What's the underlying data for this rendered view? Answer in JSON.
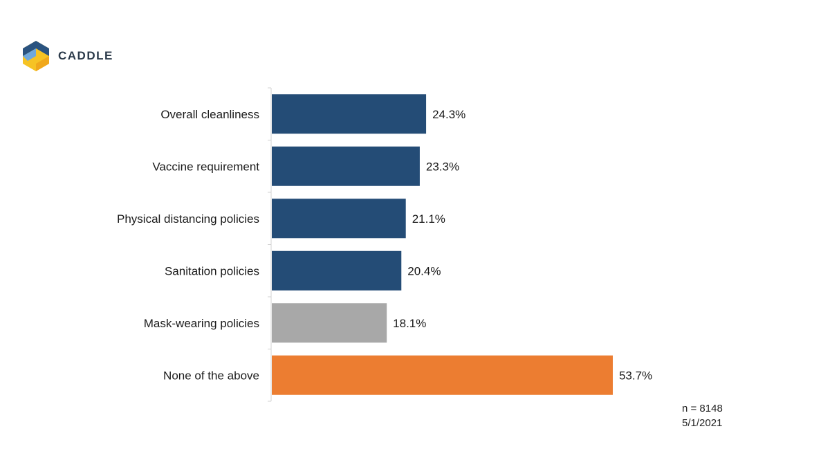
{
  "brand": {
    "name": "CADDLE",
    "logo_icon": "caddle-hexagon-logo-icon",
    "colors": {
      "blue": "#2a5380",
      "yellow": "#f6c324",
      "light_blue": "#6fa8dc"
    }
  },
  "chart_data": {
    "type": "bar",
    "orientation": "horizontal",
    "categories": [
      "Overall cleanliness",
      "Vaccine requirement",
      "Physical distancing policies",
      "Sanitation policies",
      "Mask-wearing policies",
      "None of the above"
    ],
    "values": [
      24.3,
      23.3,
      21.1,
      20.4,
      18.1,
      53.7
    ],
    "value_labels": [
      "24.3%",
      "23.3%",
      "21.1%",
      "20.4%",
      "18.1%",
      "53.7%"
    ],
    "colors": [
      "#244c76",
      "#244c76",
      "#244c76",
      "#244c76",
      "#a8a8a8",
      "#ec7d31"
    ],
    "xlim": [
      0,
      100
    ],
    "grid": false,
    "legend": "none"
  },
  "footnote": {
    "sample": "n = 8148",
    "date": "5/1/2021"
  }
}
